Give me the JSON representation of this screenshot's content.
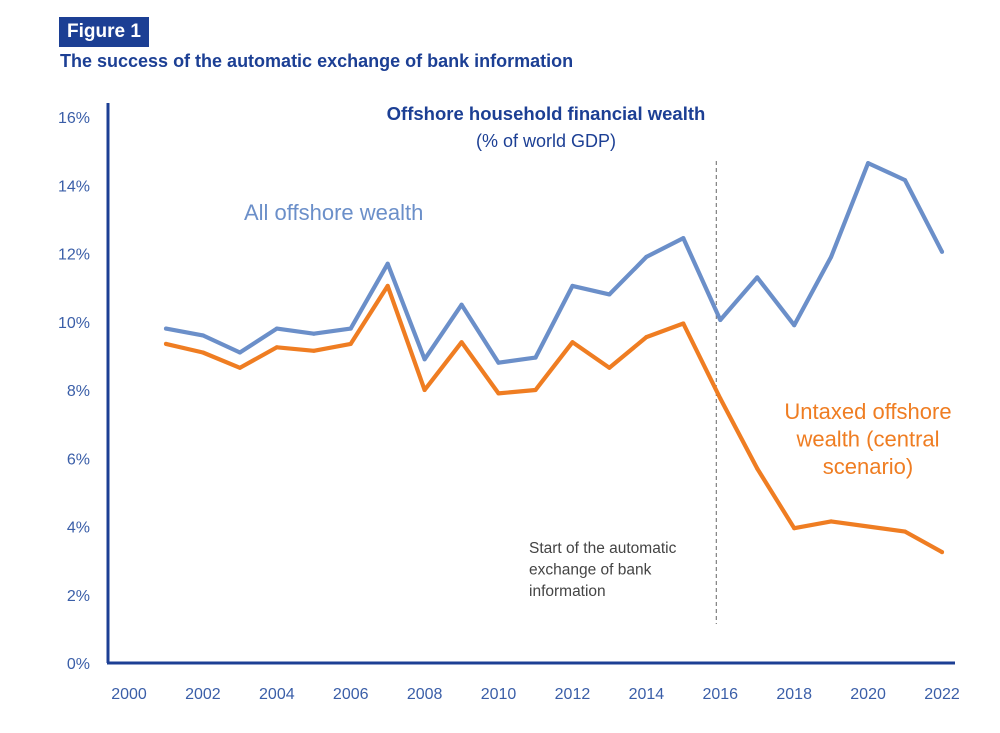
{
  "figure": {
    "label": "Figure 1",
    "title": "The success of the automatic exchange of bank information"
  },
  "chart_data": {
    "type": "line",
    "title": "Offshore household financial wealth",
    "subtitle": "(% of world GDP)",
    "xlabel": "",
    "ylabel": "",
    "xlim": [
      2000,
      2022
    ],
    "ylim": [
      0,
      16
    ],
    "grid": false,
    "x_ticks": [
      "2000",
      "2002",
      "2004",
      "2006",
      "2008",
      "2010",
      "2012",
      "2014",
      "2016",
      "2018",
      "2020",
      "2022"
    ],
    "y_ticks": [
      "0%",
      "2%",
      "4%",
      "6%",
      "8%",
      "10%",
      "12%",
      "14%",
      "16%"
    ],
    "series": [
      {
        "name": "All offshore wealth",
        "color": "#6b8fc9",
        "x": [
          2001,
          2002,
          2003,
          2004,
          2005,
          2006,
          2007,
          2008,
          2009,
          2010,
          2011,
          2012,
          2013,
          2014,
          2015,
          2016,
          2017,
          2018,
          2019,
          2020,
          2021,
          2022
        ],
        "values": [
          9.8,
          9.6,
          9.1,
          9.8,
          9.65,
          9.8,
          11.7,
          8.9,
          10.5,
          8.8,
          8.95,
          11.05,
          10.8,
          11.9,
          12.45,
          10.05,
          11.3,
          9.9,
          11.9,
          14.65,
          14.15,
          12.05
        ]
      },
      {
        "name": "Untaxed offshore wealth (central scenario)",
        "color": "#ef7d22",
        "x": [
          2001,
          2002,
          2003,
          2004,
          2005,
          2006,
          2007,
          2008,
          2009,
          2010,
          2011,
          2012,
          2013,
          2014,
          2015,
          2016,
          2017,
          2018,
          2019,
          2020,
          2021,
          2022
        ],
        "values": [
          9.35,
          9.1,
          8.65,
          9.25,
          9.15,
          9.35,
          11.05,
          8.0,
          9.4,
          7.9,
          8.0,
          9.4,
          8.65,
          9.55,
          9.95,
          7.75,
          5.7,
          3.95,
          4.15,
          4.0,
          3.85,
          3.25
        ]
      }
    ],
    "annotations": {
      "all_offshore_label": "All offshore wealth",
      "untaxed_label_lines": [
        "Untaxed offshore",
        "wealth (central",
        "scenario)"
      ],
      "vline_year": 2016,
      "vline_label_lines": [
        "Start of the automatic",
        "exchange of bank",
        "information"
      ]
    }
  }
}
